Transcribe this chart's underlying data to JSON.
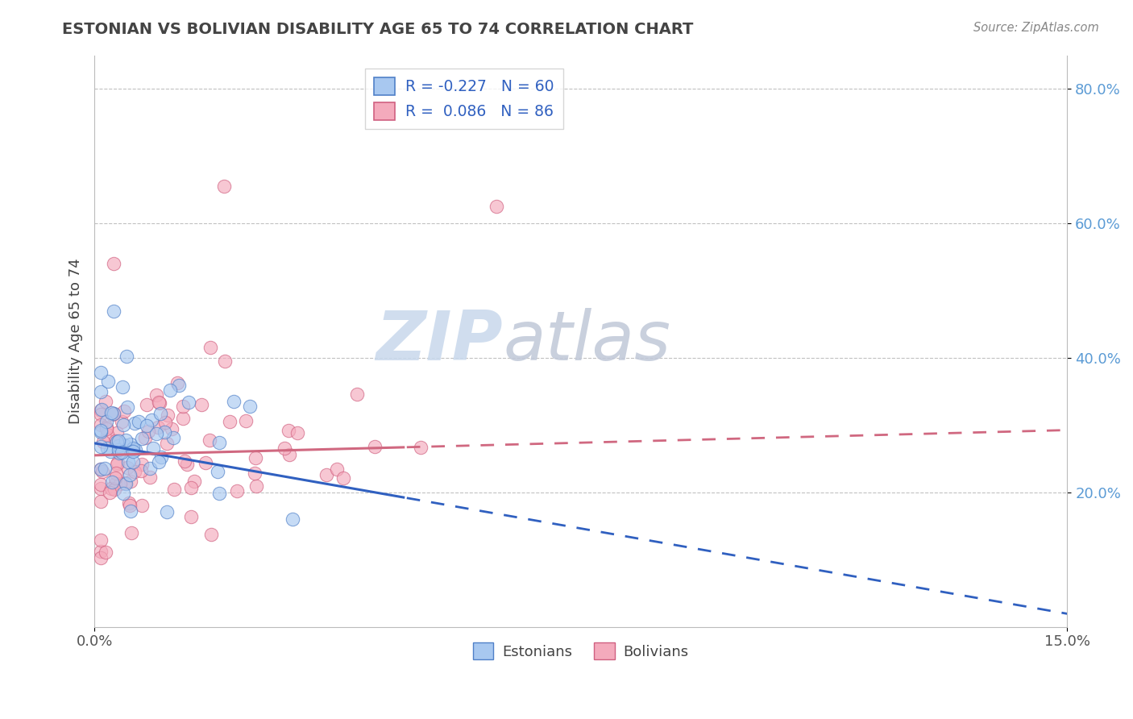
{
  "title": "ESTONIAN VS BOLIVIAN DISABILITY AGE 65 TO 74 CORRELATION CHART",
  "source": "Source: ZipAtlas.com",
  "ylabel": "Disability Age 65 to 74",
  "xlim": [
    0.0,
    0.15
  ],
  "ylim": [
    0.0,
    0.85
  ],
  "x_tick_vals": [
    0.0,
    0.15
  ],
  "x_tick_labels": [
    "0.0%",
    "15.0%"
  ],
  "y_tick_vals": [
    0.2,
    0.4,
    0.6,
    0.8
  ],
  "y_tick_labels": [
    "20.0%",
    "40.0%",
    "60.0%",
    "80.0%"
  ],
  "legend_R_estonian": "-0.227",
  "legend_N_estonian": "60",
  "legend_R_bolivian": "0.086",
  "legend_N_bolivian": "86",
  "estonian_fill": "#A8C8F0",
  "bolivian_fill": "#F4AABC",
  "estonian_edge": "#5080C8",
  "bolivian_edge": "#D06080",
  "estonian_line": "#3060C0",
  "bolivian_line": "#D06880",
  "background_color": "#FFFFFF",
  "grid_color": "#BBBBBB",
  "title_color": "#444444",
  "source_color": "#888888",
  "ytick_color": "#5B9BD5",
  "xtick_color": "#555555",
  "watermark_zip_color": "#C8D8EC",
  "watermark_atlas_color": "#C0C8D8"
}
